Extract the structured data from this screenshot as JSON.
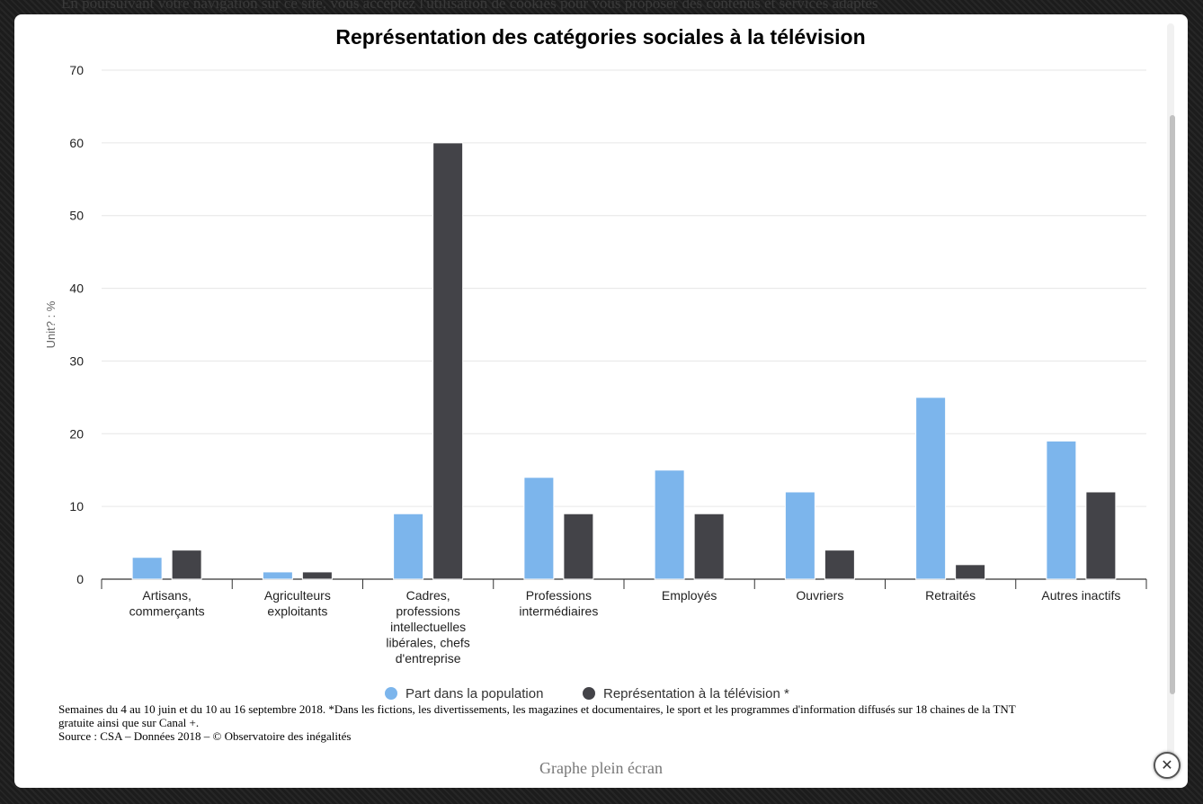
{
  "background_text": "En poursuivant votre navigation sur ce site, vous acceptez l'utilisation de cookies pour vous proposer des contenus et services adaptés",
  "colors": {
    "population": "#7cb5ec",
    "television": "#434348"
  },
  "legend": {
    "population": "Part dans la population",
    "television": "Représentation à la télévision *"
  },
  "notes": {
    "line1": "Semaines du 4 au 10 juin et du 10 au 16 septembre 2018. *Dans les fictions, les divertissements, les magazines et documentaires, le sport et les programmes d'information diffusés sur 18 chaines de la TNT",
    "line2": "gratuite ainsi que sur Canal +.",
    "line3": "Source : CSA – Données 2018 – © Observatoire des inégalités"
  },
  "fullscreen_label": "Graphe plein écran",
  "close_icon": "close-icon",
  "chart_data": {
    "type": "bar",
    "title": "Représentation des catégories sociales à la télévision",
    "ylabel": "Unit? : %",
    "xlabel": "",
    "ylim": [
      0,
      70
    ],
    "yticks": [
      0,
      10,
      20,
      30,
      40,
      50,
      60,
      70
    ],
    "categories": [
      [
        "Artisans,",
        "commerçants"
      ],
      [
        "Agriculteurs",
        "exploitants"
      ],
      [
        "Cadres,",
        "professions",
        "intellectuelles",
        "libérales, chefs",
        "d'entreprise"
      ],
      [
        "Professions",
        "intermédiaires"
      ],
      [
        "Employés"
      ],
      [
        "Ouvriers"
      ],
      [
        "Retraités"
      ],
      [
        "Autres inactifs"
      ]
    ],
    "series": [
      {
        "name": "Part dans la population",
        "color": "#7cb5ec",
        "values": [
          3,
          1,
          9,
          14,
          15,
          12,
          25,
          19
        ]
      },
      {
        "name": "Représentation à la télévision *",
        "color": "#434348",
        "values": [
          4,
          1,
          60,
          9,
          9,
          4,
          2,
          12
        ]
      }
    ],
    "grid": true,
    "legend_position": "bottom-center"
  }
}
